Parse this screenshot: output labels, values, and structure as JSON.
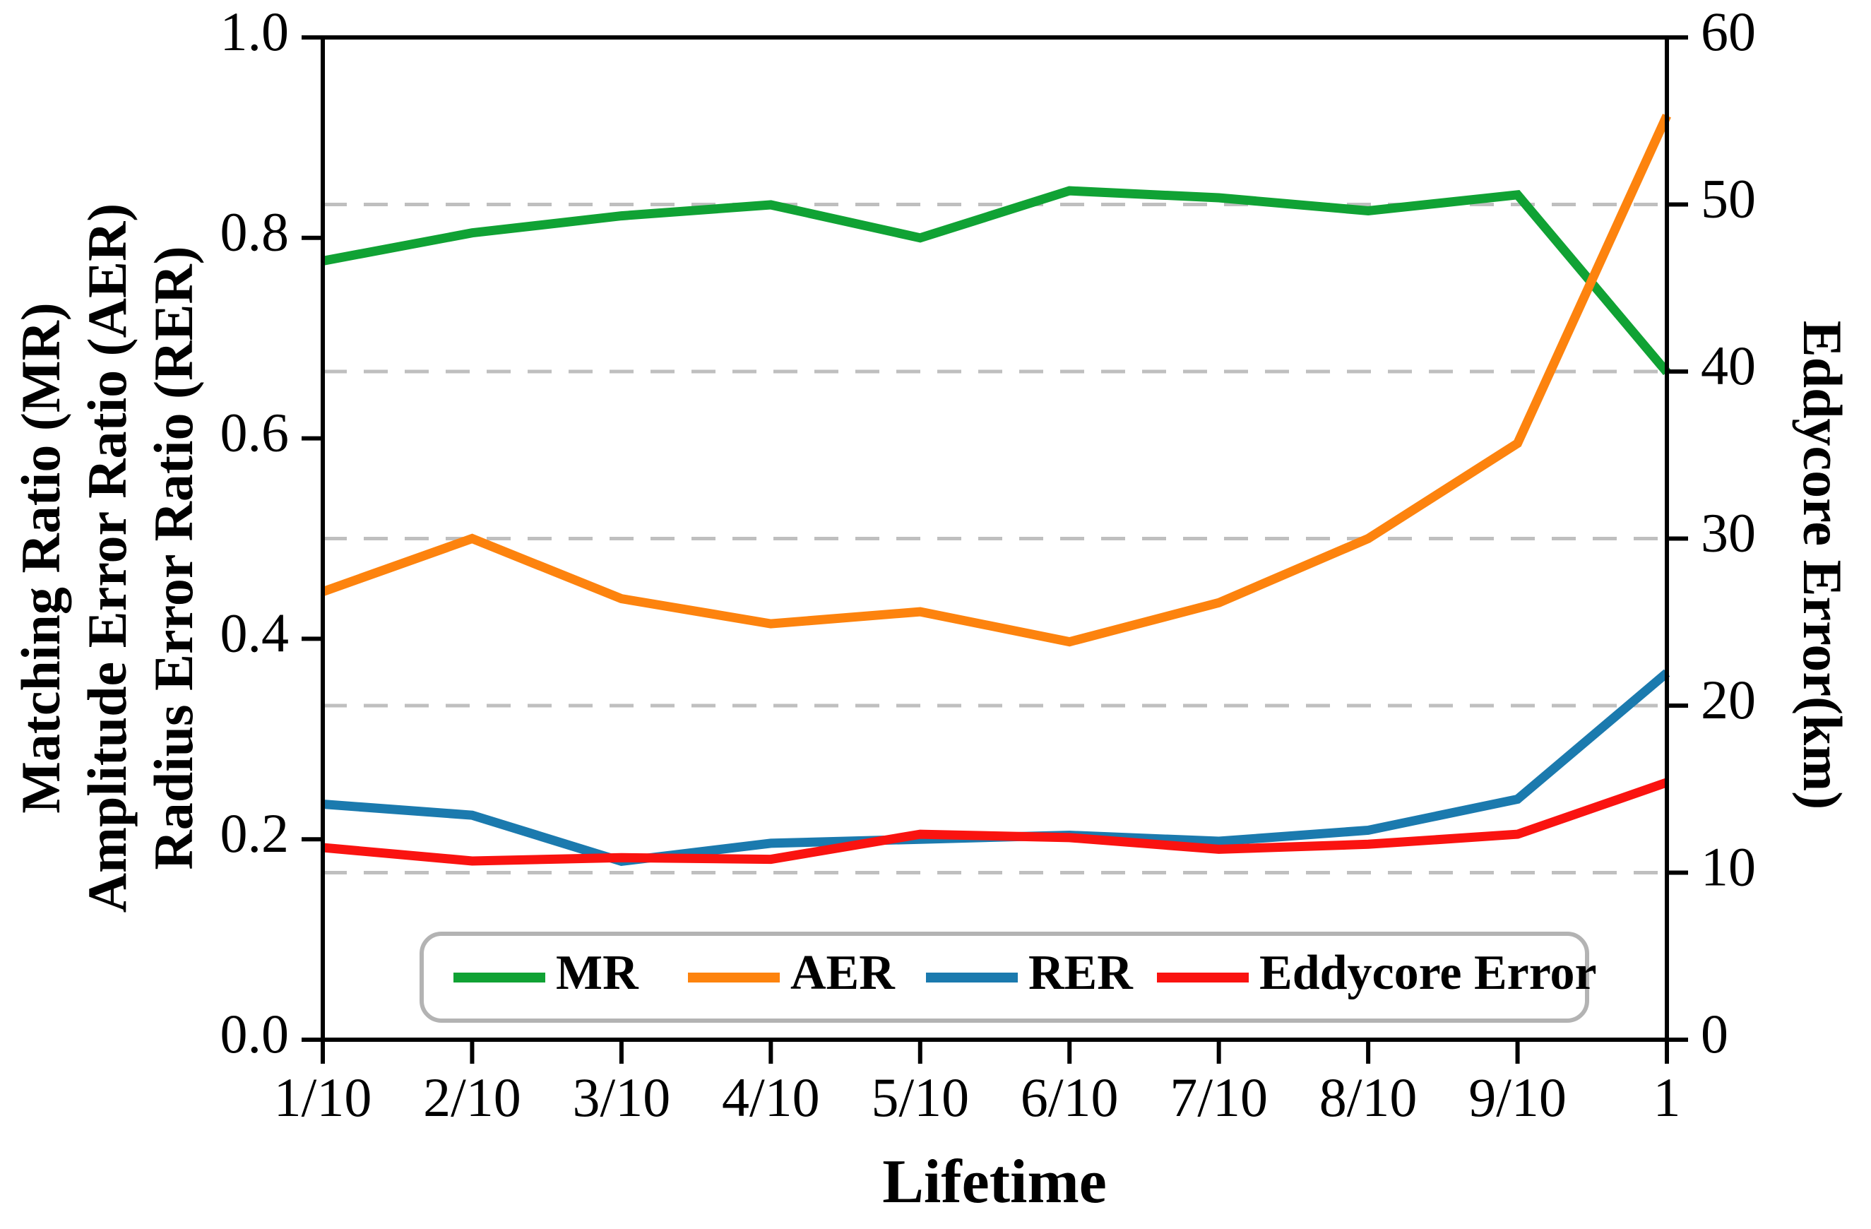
{
  "chart_data": {
    "type": "line",
    "title": "",
    "xlabel": "Lifetime",
    "ylabel_left_lines": [
      "Matching Ratio (MR)",
      "Amplitude Error Ratio (AER)",
      "Radius Error Ratio (RER)"
    ],
    "ylabel_right": "Eddycore Error(km)",
    "categories": [
      "1/10",
      "2/10",
      "3/10",
      "4/10",
      "5/10",
      "6/10",
      "7/10",
      "8/10",
      "9/10",
      "1"
    ],
    "left_axis": {
      "range": [
        0,
        1
      ],
      "ticks": [
        "0.0",
        "0.2",
        "0.4",
        "0.6",
        "0.8",
        "1.0"
      ]
    },
    "right_axis": {
      "range": [
        0,
        60
      ],
      "ticks": [
        "0",
        "10",
        "20",
        "30",
        "40",
        "50",
        "60"
      ]
    },
    "gridlines_right_values": [
      10,
      20,
      30,
      40,
      50
    ],
    "grid_on": true,
    "grid_color": "#bfbfbf",
    "frame_color": "#000000",
    "legend_position": "bottom-inside",
    "legend_border_color": "#b3b3b3",
    "series": [
      {
        "name": "MR",
        "axis": "left",
        "color": "#10a234",
        "values": [
          0.777,
          0.805,
          0.822,
          0.833,
          0.8,
          0.847,
          0.84,
          0.827,
          0.843,
          0.666
        ]
      },
      {
        "name": "AER",
        "axis": "left",
        "color": "#fd830e",
        "values": [
          0.447,
          0.5,
          0.44,
          0.415,
          0.427,
          0.397,
          0.436,
          0.5,
          0.595,
          0.922
        ]
      },
      {
        "name": "RER",
        "axis": "left",
        "color": "#1b7aae",
        "values": [
          0.235,
          0.224,
          0.178,
          0.196,
          0.2,
          0.204,
          0.198,
          0.209,
          0.24,
          0.366
        ]
      },
      {
        "name": "Eddycore Error",
        "axis": "right",
        "color": "#fa1310",
        "values": [
          11.5,
          10.7,
          10.9,
          10.8,
          12.3,
          12.1,
          11.4,
          11.7,
          12.3,
          15.4
        ]
      }
    ]
  }
}
